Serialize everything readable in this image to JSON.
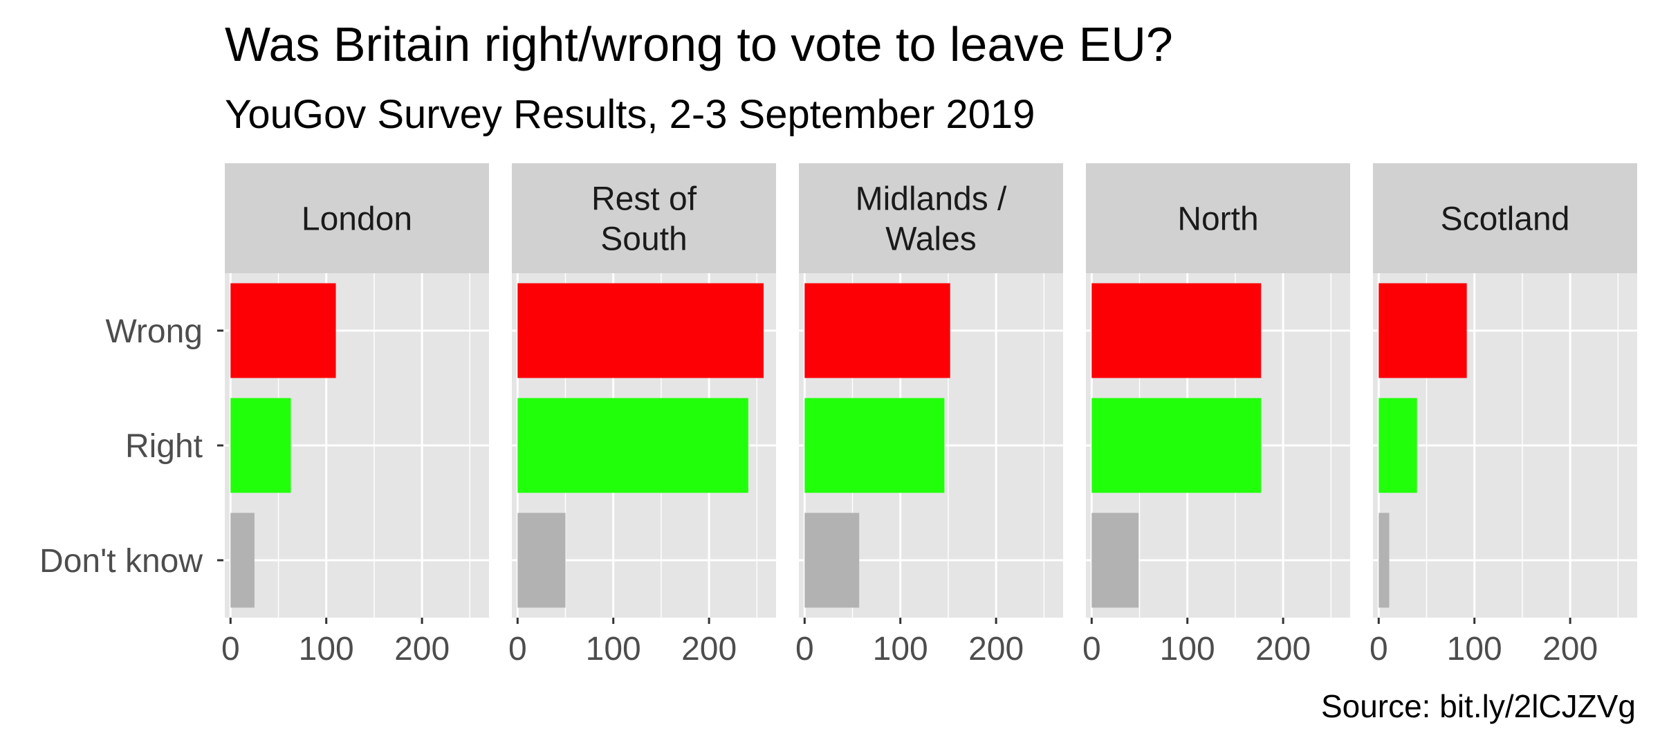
{
  "chart_data": {
    "type": "bar",
    "orientation": "horizontal",
    "faceted": true,
    "title": "Was Britain right/wrong to vote to leave EU?",
    "subtitle": "YouGov Survey Results, 2-3 September 2019",
    "caption": "Source: bit.ly/2lCJZVg",
    "xlabel": "",
    "ylabel": "",
    "categories": [
      "Wrong",
      "Right",
      "Don't know"
    ],
    "category_colors": {
      "Wrong": "#fc0006",
      "Right": "#22ff0b",
      "Don't know": "#b2b2b2"
    },
    "xlim": [
      -6,
      270
    ],
    "x_ticks": [
      0,
      100,
      200
    ],
    "x_minor_ticks": [
      50,
      150,
      250
    ],
    "grid": true,
    "legend": "none",
    "panels": [
      {
        "label": [
          "London"
        ],
        "values": {
          "Wrong": 110,
          "Right": 63,
          "Don't know": 25
        }
      },
      {
        "label": [
          "Rest of",
          "South"
        ],
        "values": {
          "Wrong": 257,
          "Right": 241,
          "Don't know": 50
        }
      },
      {
        "label": [
          "Midlands /",
          "Wales"
        ],
        "values": {
          "Wrong": 152,
          "Right": 146,
          "Don't know": 57
        }
      },
      {
        "label": [
          "North"
        ],
        "values": {
          "Wrong": 177,
          "Right": 177,
          "Don't know": 49
        }
      },
      {
        "label": [
          "Scotland"
        ],
        "values": {
          "Wrong": 92,
          "Right": 40,
          "Don't know": 11
        }
      }
    ]
  },
  "theme": {
    "panel_background": "#e5e5e5",
    "strip_background": "#d1d1d1",
    "grid_color": "#ffffff",
    "tick_color": "#333333"
  }
}
